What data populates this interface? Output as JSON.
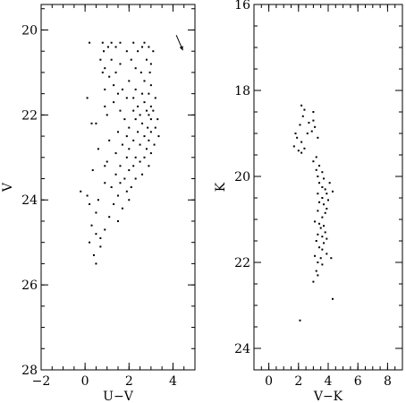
{
  "chart_data": [
    {
      "type": "scatter",
      "xlabel": "U−V",
      "ylabel": "V",
      "xlim": [
        -2,
        5
      ],
      "ylim": [
        28,
        19.4
      ],
      "y_inverted": true,
      "xticks": [
        -2,
        0,
        2,
        4
      ],
      "yticks": [
        20,
        22,
        24,
        26,
        28
      ],
      "xtick_labels": [
        "−2",
        "0",
        "2",
        "4"
      ],
      "ytick_labels": [
        "20",
        "22",
        "24",
        "26",
        "28"
      ],
      "marker_color": "#000000",
      "annotation": "reddening-vector-arrow",
      "arrow": {
        "from": [
          4.15,
          20.12
        ],
        "to": [
          4.45,
          20.48
        ]
      },
      "points": [
        [
          0.2,
          20.3
        ],
        [
          0.8,
          20.3
        ],
        [
          1.2,
          20.3
        ],
        [
          1.6,
          20.3
        ],
        [
          2.2,
          20.3
        ],
        [
          2.7,
          20.3
        ],
        [
          1.05,
          20.4
        ],
        [
          1.4,
          20.4
        ],
        [
          2.6,
          20.4
        ],
        [
          2.9,
          20.4
        ],
        [
          0.85,
          20.5
        ],
        [
          1.9,
          20.5
        ],
        [
          2.4,
          20.5
        ],
        [
          3.1,
          20.5
        ],
        [
          0.7,
          20.7
        ],
        [
          1.2,
          20.7
        ],
        [
          2.1,
          20.7
        ],
        [
          2.8,
          20.7
        ],
        [
          3.0,
          20.8
        ],
        [
          1.6,
          20.8
        ],
        [
          0.9,
          20.9
        ],
        [
          2.3,
          20.9
        ],
        [
          0.8,
          21.0
        ],
        [
          1.4,
          21.0
        ],
        [
          2.55,
          21.0
        ],
        [
          2.95,
          21.0
        ],
        [
          1.1,
          21.1
        ],
        [
          2.0,
          21.2
        ],
        [
          2.7,
          21.2
        ],
        [
          3.0,
          21.3
        ],
        [
          1.3,
          21.3
        ],
        [
          0.9,
          21.4
        ],
        [
          1.7,
          21.4
        ],
        [
          2.3,
          21.4
        ],
        [
          1.5,
          21.5
        ],
        [
          2.6,
          21.5
        ],
        [
          2.9,
          21.5
        ],
        [
          0.1,
          21.6
        ],
        [
          1.9,
          21.6
        ],
        [
          2.2,
          21.6
        ],
        [
          3.2,
          21.6
        ],
        [
          1.3,
          21.7
        ],
        [
          2.7,
          21.7
        ],
        [
          3.0,
          21.8
        ],
        [
          2.4,
          21.8
        ],
        [
          0.9,
          21.8
        ],
        [
          1.6,
          21.9
        ],
        [
          2.2,
          21.9
        ],
        [
          2.8,
          21.9
        ],
        [
          3.1,
          21.9
        ],
        [
          1.0,
          22.0
        ],
        [
          2.5,
          22.0
        ],
        [
          2.9,
          22.0
        ],
        [
          1.8,
          22.1
        ],
        [
          2.3,
          22.1
        ],
        [
          3.0,
          22.1
        ],
        [
          3.3,
          22.1
        ],
        [
          0.3,
          22.2
        ],
        [
          0.5,
          22.2
        ],
        [
          2.6,
          22.2
        ],
        [
          2.0,
          22.3
        ],
        [
          2.85,
          22.3
        ],
        [
          3.2,
          22.3
        ],
        [
          1.5,
          22.4
        ],
        [
          2.4,
          22.4
        ],
        [
          3.0,
          22.4
        ],
        [
          2.7,
          22.5
        ],
        [
          1.9,
          22.5
        ],
        [
          3.35,
          22.5
        ],
        [
          1.1,
          22.6
        ],
        [
          2.2,
          22.6
        ],
        [
          2.9,
          22.6
        ],
        [
          3.15,
          22.7
        ],
        [
          1.7,
          22.7
        ],
        [
          2.5,
          22.7
        ],
        [
          0.6,
          22.8
        ],
        [
          2.0,
          22.8
        ],
        [
          2.8,
          22.8
        ],
        [
          3.0,
          22.9
        ],
        [
          1.4,
          22.9
        ],
        [
          2.3,
          23.0
        ],
        [
          2.7,
          23.0
        ],
        [
          1.9,
          23.0
        ],
        [
          1.0,
          23.1
        ],
        [
          2.5,
          23.1
        ],
        [
          0.9,
          23.2
        ],
        [
          1.6,
          23.2
        ],
        [
          2.2,
          23.2
        ],
        [
          2.9,
          23.2
        ],
        [
          0.35,
          23.3
        ],
        [
          2.0,
          23.3
        ],
        [
          1.4,
          23.4
        ],
        [
          2.6,
          23.4
        ],
        [
          1.8,
          23.5
        ],
        [
          2.3,
          23.5
        ],
        [
          0.9,
          23.6
        ],
        [
          1.6,
          23.6
        ],
        [
          2.1,
          23.7
        ],
        [
          1.2,
          23.7
        ],
        [
          1.9,
          23.8
        ],
        [
          -0.2,
          23.8
        ],
        [
          1.5,
          23.9
        ],
        [
          0.1,
          23.9
        ],
        [
          2.0,
          24.0
        ],
        [
          0.6,
          24.0
        ],
        [
          1.3,
          24.1
        ],
        [
          0.2,
          24.1
        ],
        [
          1.7,
          24.2
        ],
        [
          0.5,
          24.3
        ],
        [
          1.1,
          24.4
        ],
        [
          1.5,
          24.5
        ],
        [
          0.3,
          24.6
        ],
        [
          0.9,
          24.7
        ],
        [
          0.5,
          24.8
        ],
        [
          0.7,
          24.9
        ],
        [
          0.2,
          25.0
        ],
        [
          0.7,
          25.1
        ],
        [
          0.4,
          25.3
        ],
        [
          0.5,
          25.5
        ]
      ]
    },
    {
      "type": "scatter",
      "xlabel": "V−K",
      "ylabel": "K",
      "xlim": [
        -1,
        9
      ],
      "ylim": [
        24.5,
        16
      ],
      "y_inverted": true,
      "xticks": [
        0,
        2,
        4,
        6,
        8
      ],
      "yticks": [
        16,
        18,
        20,
        22,
        24
      ],
      "xtick_labels": [
        "0",
        "2",
        "4",
        "6",
        "8"
      ],
      "ytick_labels": [
        "16",
        "18",
        "20",
        "22",
        "24"
      ],
      "marker_color": "#000000",
      "points": [
        [
          2.2,
          18.35
        ],
        [
          2.4,
          18.45
        ],
        [
          3.0,
          18.5
        ],
        [
          2.3,
          18.6
        ],
        [
          3.0,
          18.7
        ],
        [
          2.7,
          18.75
        ],
        [
          2.1,
          18.8
        ],
        [
          3.1,
          18.85
        ],
        [
          2.9,
          18.95
        ],
        [
          1.8,
          19.0
        ],
        [
          2.6,
          19.0
        ],
        [
          1.9,
          19.1
        ],
        [
          3.3,
          19.1
        ],
        [
          2.2,
          19.2
        ],
        [
          1.7,
          19.3
        ],
        [
          2.4,
          19.35
        ],
        [
          2.0,
          19.4
        ],
        [
          2.2,
          19.45
        ],
        [
          3.2,
          19.55
        ],
        [
          3.0,
          19.65
        ],
        [
          3.4,
          19.75
        ],
        [
          3.2,
          19.85
        ],
        [
          3.6,
          19.9
        ],
        [
          3.3,
          20.0
        ],
        [
          3.7,
          20.05
        ],
        [
          3.4,
          20.15
        ],
        [
          4.1,
          20.15
        ],
        [
          3.6,
          20.25
        ],
        [
          3.8,
          20.3
        ],
        [
          4.3,
          20.35
        ],
        [
          3.3,
          20.4
        ],
        [
          3.9,
          20.4
        ],
        [
          3.6,
          20.5
        ],
        [
          4.0,
          20.55
        ],
        [
          3.4,
          20.6
        ],
        [
          3.7,
          20.65
        ],
        [
          3.9,
          20.75
        ],
        [
          3.3,
          20.8
        ],
        [
          3.8,
          20.85
        ],
        [
          3.6,
          20.95
        ],
        [
          3.1,
          21.05
        ],
        [
          3.4,
          21.1
        ],
        [
          3.7,
          21.15
        ],
        [
          3.5,
          21.2
        ],
        [
          3.8,
          21.3
        ],
        [
          3.3,
          21.35
        ],
        [
          3.6,
          21.4
        ],
        [
          3.9,
          21.45
        ],
        [
          3.2,
          21.5
        ],
        [
          3.7,
          21.55
        ],
        [
          3.4,
          21.65
        ],
        [
          3.6,
          21.7
        ],
        [
          3.9,
          21.8
        ],
        [
          3.1,
          21.85
        ],
        [
          3.5,
          21.9
        ],
        [
          4.2,
          21.9
        ],
        [
          3.3,
          22.0
        ],
        [
          3.6,
          22.05
        ],
        [
          3.2,
          22.2
        ],
        [
          3.3,
          22.3
        ],
        [
          3.0,
          22.45
        ],
        [
          4.3,
          22.85
        ],
        [
          2.1,
          23.35
        ]
      ]
    }
  ]
}
